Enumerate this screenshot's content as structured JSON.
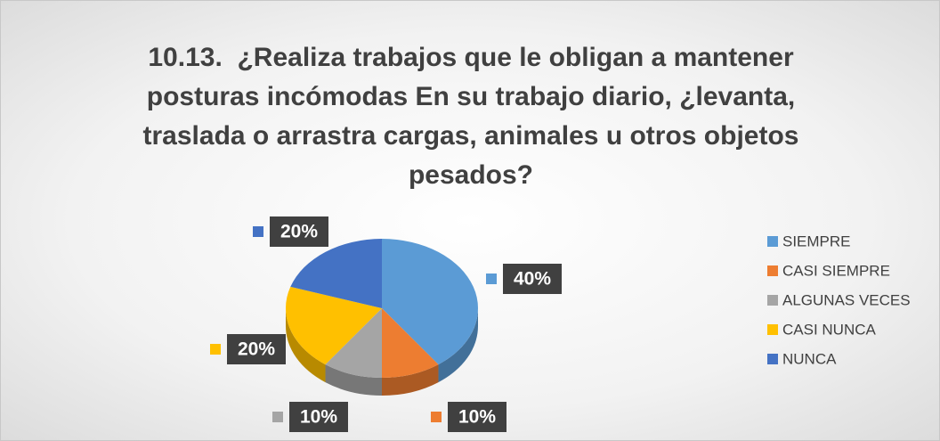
{
  "chart_data": {
    "type": "pie",
    "title": "10.13.  ¿Realiza trabajos que le obligan a mantener posturas incómodas En su trabajo diario, ¿levanta, traslada o arrastra cargas, animales u otros objetos pesados?",
    "categories": [
      "SIEMPRE",
      "CASI SIEMPRE",
      "ALGUNAS VECES",
      "CASI NUNCA",
      "NUNCA"
    ],
    "values": [
      40,
      10,
      10,
      20,
      20
    ],
    "value_labels": [
      "40%",
      "10%",
      "10%",
      "20%",
      "20%"
    ],
    "colors": [
      "#5b9bd5",
      "#ed7d31",
      "#a5a5a5",
      "#ffc000",
      "#4472c4"
    ],
    "legend": "right"
  }
}
